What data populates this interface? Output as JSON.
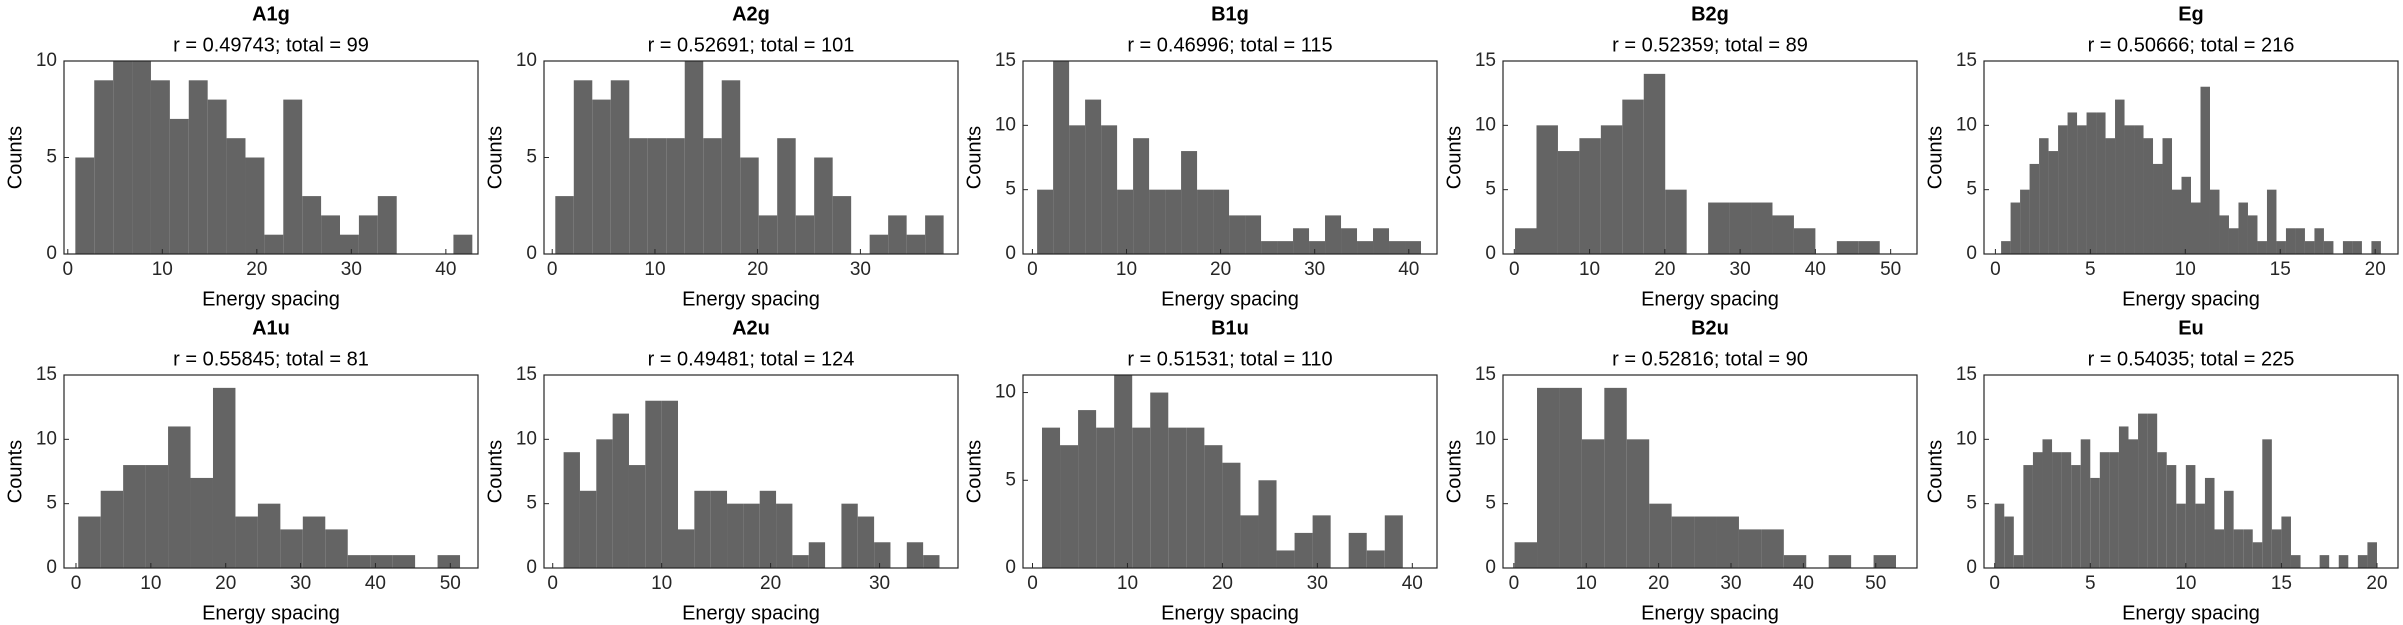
{
  "chart_data": [
    {
      "type": "histogram",
      "title": "A1g",
      "subtitle": "r = 0.49743; total = 99",
      "xlabel": "Energy spacing",
      "ylabel": "Counts",
      "color": "#646464",
      "bins": [
        0.8,
        2.8,
        4.8,
        6.8,
        8.8,
        10.8,
        12.8,
        14.8,
        16.8,
        18.8,
        20.8,
        22.8,
        24.8,
        26.8,
        28.8,
        30.8,
        32.8,
        34.8,
        36.8,
        38.8,
        40.8,
        42.8
      ],
      "values": [
        5,
        9,
        10,
        10,
        9,
        7,
        9,
        8,
        6,
        5,
        1,
        8,
        3,
        2,
        1,
        2,
        3,
        0,
        0,
        0,
        1
      ],
      "xlim": [
        -0.4,
        43.4
      ],
      "ylim": [
        0,
        10
      ],
      "xticks": [
        0,
        10,
        20,
        30,
        40
      ],
      "yticks": [
        0,
        5,
        10
      ]
    },
    {
      "type": "histogram",
      "title": "A2g",
      "subtitle": "r = 0.52691; total = 101",
      "xlabel": "Energy spacing",
      "ylabel": "Counts",
      "color": "#646464",
      "bins": [
        0.3,
        2.1,
        3.9,
        5.7,
        7.5,
        9.3,
        11.1,
        12.9,
        14.7,
        16.5,
        18.3,
        20.1,
        21.9,
        23.7,
        25.5,
        27.3,
        29.1,
        30.9,
        32.7,
        34.5,
        36.3,
        38.1
      ],
      "values": [
        3,
        9,
        8,
        9,
        6,
        6,
        6,
        10,
        6,
        9,
        5,
        2,
        6,
        2,
        5,
        3,
        0,
        1,
        2,
        1,
        2
      ],
      "xlim": [
        -0.8,
        39.5
      ],
      "ylim": [
        0,
        10
      ],
      "xticks": [
        0,
        10,
        20,
        30
      ],
      "yticks": [
        0,
        5,
        10
      ]
    },
    {
      "type": "histogram",
      "title": "B1g",
      "subtitle": "r = 0.46996; total = 115",
      "xlabel": "Energy spacing",
      "ylabel": "Counts",
      "color": "#646464",
      "bins": [
        0.5,
        2.2,
        3.9,
        5.6,
        7.3,
        9,
        10.7,
        12.4,
        14.1,
        15.8,
        17.5,
        19.2,
        20.9,
        22.6,
        24.3,
        26,
        27.7,
        29.4,
        31.1,
        32.8,
        34.5,
        36.2,
        37.9,
        39.6,
        41.3
      ],
      "values": [
        5,
        15,
        10,
        12,
        10,
        5,
        9,
        5,
        5,
        8,
        5,
        5,
        3,
        3,
        1,
        1,
        2,
        1,
        3,
        2,
        1,
        2,
        1,
        1
      ],
      "xlim": [
        -1,
        43
      ],
      "ylim": [
        0,
        15
      ],
      "xticks": [
        0,
        10,
        20,
        30,
        40
      ],
      "yticks": [
        0,
        5,
        10,
        15
      ]
    },
    {
      "type": "histogram",
      "title": "B2g",
      "subtitle": "r = 0.52359; total = 89",
      "xlabel": "Energy spacing",
      "ylabel": "Counts",
      "color": "#646464",
      "bins": [
        0.1,
        2.95,
        5.8,
        8.65,
        11.5,
        14.35,
        17.2,
        20.05,
        22.9,
        25.75,
        28.6,
        31.45,
        34.3,
        37.15,
        40,
        42.85,
        45.7,
        48.55
      ],
      "values": [
        2,
        10,
        8,
        9,
        10,
        12,
        14,
        5,
        0,
        4,
        4,
        4,
        3,
        2,
        0,
        1,
        1
      ],
      "xlim": [
        -1.5,
        53.5
      ],
      "ylim": [
        0,
        15
      ],
      "xticks": [
        0,
        10,
        20,
        30,
        40,
        50
      ],
      "yticks": [
        0,
        5,
        10,
        15
      ]
    },
    {
      "type": "histogram",
      "title": "Eg",
      "subtitle": "r = 0.50666; total = 216",
      "xlabel": "Energy spacing",
      "ylabel": "Counts",
      "color": "#646464",
      "bins": [
        0.3,
        0.8,
        1.3,
        1.8,
        2.3,
        2.8,
        3.3,
        3.8,
        4.3,
        4.8,
        5.3,
        5.8,
        6.3,
        6.8,
        7.3,
        7.8,
        8.3,
        8.8,
        9.3,
        9.8,
        10.3,
        10.8,
        11.3,
        11.8,
        12.3,
        12.8,
        13.3,
        13.8,
        14.3,
        14.8,
        15.3,
        15.8,
        16.3,
        16.8,
        17.3,
        17.8,
        18.3,
        18.8,
        19.3,
        19.8,
        20.3
      ],
      "values": [
        1,
        4,
        5,
        7,
        9,
        8,
        10,
        11,
        10,
        11,
        11,
        9,
        12,
        10,
        10,
        9,
        7,
        9,
        5,
        6,
        4,
        13,
        5,
        3,
        2,
        4,
        3,
        1,
        5,
        1,
        2,
        2,
        1,
        2,
        1,
        0,
        1,
        1,
        0,
        1
      ],
      "xlim": [
        -0.6,
        21.2
      ],
      "ylim": [
        0,
        15
      ],
      "xticks": [
        0,
        5,
        10,
        15,
        20
      ],
      "yticks": [
        0,
        5,
        10,
        15
      ]
    },
    {
      "type": "histogram",
      "title": "A1u",
      "subtitle": "r = 0.55845; total = 81",
      "xlabel": "Energy spacing",
      "ylabel": "Counts",
      "color": "#646464",
      "bins": [
        0.3,
        3.3,
        6.3,
        9.3,
        12.3,
        15.3,
        18.3,
        21.3,
        24.3,
        27.3,
        30.3,
        33.3,
        36.3,
        39.3,
        42.3,
        45.3,
        48.3,
        51.3
      ],
      "values": [
        4,
        6,
        8,
        8,
        11,
        7,
        14,
        4,
        5,
        3,
        4,
        3,
        1,
        1,
        1,
        0,
        1
      ],
      "xlim": [
        -1.6,
        53.7
      ],
      "ylim": [
        0,
        15
      ],
      "xticks": [
        0,
        10,
        20,
        30,
        40,
        50
      ],
      "yticks": [
        0,
        5,
        10,
        15
      ]
    },
    {
      "type": "histogram",
      "title": "A2u",
      "subtitle": "r = 0.49481; total = 124",
      "xlabel": "Energy spacing",
      "ylabel": "Counts",
      "color": "#646464",
      "bins": [
        1,
        2.5,
        4,
        5.5,
        7,
        8.5,
        10,
        11.5,
        13,
        14.5,
        16,
        17.5,
        19,
        20.5,
        22,
        23.5,
        25,
        26.5,
        28,
        29.5,
        31,
        32.5,
        34,
        35.5
      ],
      "values": [
        9,
        6,
        10,
        12,
        8,
        13,
        13,
        3,
        6,
        6,
        5,
        5,
        6,
        5,
        1,
        2,
        0,
        5,
        4,
        2,
        0,
        2,
        1
      ],
      "xlim": [
        -0.8,
        37.2
      ],
      "ylim": [
        0,
        15
      ],
      "xticks": [
        0,
        10,
        20,
        30
      ],
      "yticks": [
        0,
        5,
        10,
        15
      ]
    },
    {
      "type": "histogram",
      "title": "B1u",
      "subtitle": "r = 0.51531; total = 110",
      "xlabel": "Energy spacing",
      "ylabel": "Counts",
      "color": "#646464",
      "bins": [
        1,
        2.9,
        4.8,
        6.7,
        8.6,
        10.5,
        12.4,
        14.3,
        16.2,
        18.1,
        20,
        21.9,
        23.8,
        25.7,
        27.6,
        29.5,
        31.4,
        33.3,
        35.2,
        37.1,
        39
      ],
      "values": [
        8,
        7,
        9,
        8,
        11,
        8,
        10,
        8,
        8,
        7,
        6,
        3,
        5,
        1,
        2,
        3,
        0,
        2,
        1,
        3
      ],
      "xlim": [
        -1,
        42.6
      ],
      "ylim": [
        0,
        11
      ],
      "xticks": [
        0,
        10,
        20,
        30,
        40
      ],
      "yticks": [
        0,
        5,
        10
      ]
    },
    {
      "type": "histogram",
      "title": "B2u",
      "subtitle": "r = 0.52816; total = 90",
      "xlabel": "Energy spacing",
      "ylabel": "Counts",
      "color": "#646464",
      "bins": [
        0.1,
        3.2,
        6.3,
        9.4,
        12.5,
        15.6,
        18.7,
        21.8,
        24.9,
        28,
        31.1,
        34.2,
        37.3,
        40.4,
        43.5,
        46.6,
        49.7,
        52.8
      ],
      "values": [
        2,
        14,
        14,
        10,
        14,
        10,
        5,
        4,
        4,
        4,
        3,
        3,
        1,
        0,
        1,
        0,
        1
      ],
      "xlim": [
        -1.5,
        55.7
      ],
      "ylim": [
        0,
        15
      ],
      "xticks": [
        0,
        10,
        20,
        30,
        40,
        50
      ],
      "yticks": [
        0,
        5,
        10,
        15
      ]
    },
    {
      "type": "histogram",
      "title": "Eu",
      "subtitle": "r = 0.54035; total = 225",
      "xlabel": "Energy spacing",
      "ylabel": "Counts",
      "color": "#646464",
      "bins": [
        0,
        0.5,
        1,
        1.5,
        2,
        2.5,
        3,
        3.5,
        4,
        4.5,
        5,
        5.5,
        6,
        6.5,
        7,
        7.5,
        8,
        8.5,
        9,
        9.5,
        10,
        10.5,
        11,
        11.5,
        12,
        12.5,
        13,
        13.5,
        14,
        14.5,
        15,
        15.5,
        16,
        16.5,
        17,
        17.5,
        18,
        18.5,
        19,
        19.5,
        20
      ],
      "values": [
        5,
        4,
        1,
        8,
        9,
        10,
        9,
        9,
        8,
        10,
        7,
        9,
        9,
        11,
        10,
        12,
        12,
        9,
        8,
        5,
        8,
        5,
        7,
        3,
        6,
        3,
        3,
        2,
        10,
        3,
        4,
        1,
        0,
        0,
        1,
        0,
        1,
        0,
        1,
        2
      ],
      "xlim": [
        -0.56,
        21.1
      ],
      "ylim": [
        0,
        15
      ],
      "xticks": [
        0,
        5,
        10,
        15,
        20
      ],
      "yticks": [
        0,
        5,
        10,
        15
      ]
    }
  ]
}
